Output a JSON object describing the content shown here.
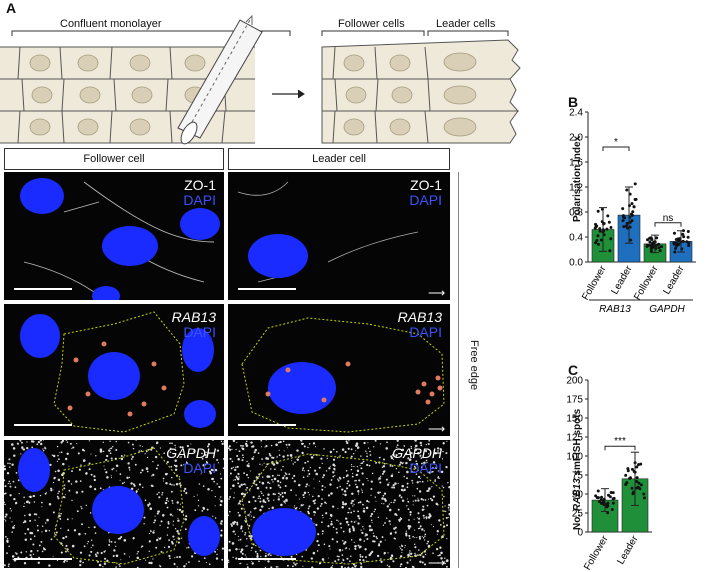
{
  "panel_a": {
    "letter": "A",
    "label_monolayer": "Confluent monolayer",
    "label_follower_cells": "Follower cells",
    "label_leader_cells": "Leader cells",
    "col_follower": "Follower cell",
    "col_leader": "Leader cell",
    "free_edge": "Free edge",
    "rows": [
      {
        "top": "ZO-1",
        "dapi": "DAPI",
        "italic": false
      },
      {
        "top": "RAB13",
        "dapi": "DAPI",
        "italic": true
      },
      {
        "top": "GAPDH",
        "dapi": "DAPI",
        "italic": true
      }
    ]
  },
  "panel_b": {
    "letter": "B",
    "ylabel": "Polarisation Index",
    "groups": [
      "RAB13",
      "GAPDH"
    ],
    "sig": [
      "*",
      "ns"
    ]
  },
  "panel_c": {
    "letter": "C",
    "ylabel_prefix": "No. ",
    "ylabel_gene": "RAB13",
    "ylabel_suffix": " smFISH spots",
    "sig": "***"
  },
  "chart_data": [
    {
      "type": "bar",
      "panel": "B",
      "categories": [
        "Follower",
        "Leader",
        "Follower",
        "Leader"
      ],
      "group_labels": [
        "RAB13",
        "RAB13",
        "GAPDH",
        "GAPDH"
      ],
      "values": [
        0.52,
        0.75,
        0.29,
        0.33
      ],
      "error": [
        0.35,
        0.45,
        0.14,
        0.17
      ],
      "colors": [
        "#1f8f3a",
        "#1f6fbf",
        "#1f8f3a",
        "#1f6fbf"
      ],
      "ylabel": "Polarisation Index",
      "ylim": [
        0,
        2.4
      ],
      "yticks": [
        0,
        0.4,
        0.8,
        1.2,
        1.6,
        2.0,
        2.4
      ],
      "significance": [
        {
          "pair": [
            0,
            1
          ],
          "label": "*"
        },
        {
          "pair": [
            2,
            3
          ],
          "label": "ns"
        }
      ]
    },
    {
      "type": "bar",
      "panel": "C",
      "categories": [
        "Follower",
        "Leader"
      ],
      "values": [
        42,
        70
      ],
      "error": [
        15,
        35
      ],
      "colors": [
        "#1f8f3a",
        "#1f8f3a"
      ],
      "ylabel": "No. RAB13 smFISH spots",
      "ylim": [
        0,
        200
      ],
      "yticks": [
        0,
        25,
        50,
        75,
        100,
        125,
        150,
        175,
        200
      ],
      "significance": [
        {
          "pair": [
            0,
            1
          ],
          "label": "***"
        }
      ]
    }
  ]
}
